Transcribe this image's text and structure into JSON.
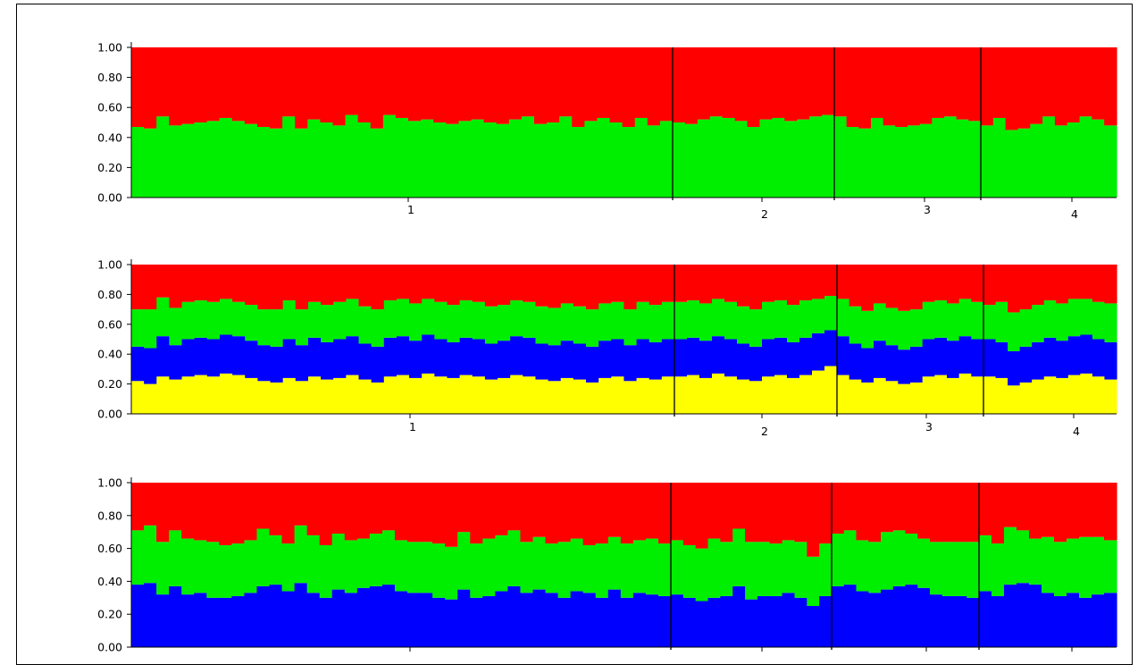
{
  "chart_data": [
    {
      "type": "bar",
      "stacked": true,
      "ylim": [
        0,
        1
      ],
      "yticks": [
        "0.00",
        "0.20",
        "0.40",
        "0.60",
        "0.80",
        "1.00"
      ],
      "populations": [
        {
          "label": "1",
          "count": 43
        },
        {
          "label": "2",
          "count": 13
        },
        {
          "label": "3",
          "count": 12
        },
        {
          "label": "4",
          "count": 11
        }
      ],
      "colors": [
        "#00ee00",
        "#ff0000"
      ],
      "cumulative_boundaries": [
        [
          0.47,
          0.46,
          0.54,
          0.48,
          0.49,
          0.5,
          0.51,
          0.53,
          0.51,
          0.49,
          0.47,
          0.46,
          0.54,
          0.46,
          0.52,
          0.5,
          0.48,
          0.55,
          0.5,
          0.46,
          0.55,
          0.53,
          0.51,
          0.52,
          0.5,
          0.49,
          0.51,
          0.52,
          0.5,
          0.49,
          0.52,
          0.54,
          0.49,
          0.5,
          0.54,
          0.47,
          0.51,
          0.53,
          0.5,
          0.47,
          0.53,
          0.48,
          0.51,
          0.5,
          0.49,
          0.52,
          0.54,
          0.53,
          0.51,
          0.47,
          0.52,
          0.53,
          0.51,
          0.52,
          0.54,
          0.55,
          0.54,
          0.47,
          0.46,
          0.53,
          0.48,
          0.47,
          0.48,
          0.49,
          0.53,
          0.54,
          0.52,
          0.51,
          0.48,
          0.53,
          0.45,
          0.46,
          0.49,
          0.54,
          0.48,
          0.5,
          0.54,
          0.52,
          0.48
        ]
      ]
    },
    {
      "type": "bar",
      "stacked": true,
      "ylim": [
        0,
        1
      ],
      "yticks": [
        "0.00",
        "0.20",
        "0.40",
        "0.60",
        "0.80",
        "1.00"
      ],
      "populations": [
        {
          "label": "1",
          "count": 43
        },
        {
          "label": "2",
          "count": 13
        },
        {
          "label": "3",
          "count": 12
        },
        {
          "label": "4",
          "count": 11
        }
      ],
      "colors": [
        "#ffff00",
        "#0000ff",
        "#00ee00",
        "#ff0000"
      ],
      "cumulative_boundaries": [
        [
          0.22,
          0.2,
          0.25,
          0.23,
          0.25,
          0.26,
          0.25,
          0.27,
          0.26,
          0.24,
          0.22,
          0.21,
          0.24,
          0.22,
          0.25,
          0.23,
          0.24,
          0.26,
          0.23,
          0.21,
          0.25,
          0.26,
          0.24,
          0.27,
          0.25,
          0.24,
          0.26,
          0.25,
          0.23,
          0.24,
          0.26,
          0.25,
          0.23,
          0.22,
          0.24,
          0.23,
          0.21,
          0.24,
          0.25,
          0.22,
          0.24,
          0.23,
          0.25,
          0.25,
          0.26,
          0.24,
          0.27,
          0.25,
          0.23,
          0.22,
          0.25,
          0.26,
          0.24,
          0.26,
          0.29,
          0.32,
          0.26,
          0.23,
          0.21,
          0.24,
          0.22,
          0.2,
          0.21,
          0.25,
          0.26,
          0.24,
          0.27,
          0.25,
          0.25,
          0.24,
          0.19,
          0.21,
          0.23,
          0.25,
          0.24,
          0.26,
          0.27,
          0.25,
          0.23
        ],
        [
          0.45,
          0.44,
          0.52,
          0.46,
          0.5,
          0.51,
          0.5,
          0.53,
          0.52,
          0.49,
          0.46,
          0.45,
          0.5,
          0.46,
          0.51,
          0.48,
          0.5,
          0.52,
          0.47,
          0.45,
          0.51,
          0.52,
          0.49,
          0.53,
          0.5,
          0.48,
          0.51,
          0.5,
          0.47,
          0.49,
          0.52,
          0.51,
          0.47,
          0.46,
          0.49,
          0.47,
          0.45,
          0.49,
          0.5,
          0.46,
          0.5,
          0.48,
          0.5,
          0.5,
          0.51,
          0.49,
          0.52,
          0.5,
          0.47,
          0.45,
          0.5,
          0.51,
          0.48,
          0.51,
          0.54,
          0.56,
          0.52,
          0.47,
          0.44,
          0.49,
          0.46,
          0.43,
          0.45,
          0.5,
          0.51,
          0.49,
          0.52,
          0.5,
          0.5,
          0.48,
          0.42,
          0.45,
          0.48,
          0.51,
          0.49,
          0.52,
          0.53,
          0.5,
          0.48
        ],
        [
          0.7,
          0.7,
          0.78,
          0.71,
          0.75,
          0.76,
          0.75,
          0.77,
          0.75,
          0.73,
          0.7,
          0.7,
          0.76,
          0.7,
          0.75,
          0.73,
          0.75,
          0.77,
          0.72,
          0.7,
          0.76,
          0.77,
          0.74,
          0.77,
          0.75,
          0.73,
          0.76,
          0.75,
          0.72,
          0.73,
          0.76,
          0.75,
          0.72,
          0.71,
          0.74,
          0.72,
          0.7,
          0.74,
          0.75,
          0.7,
          0.75,
          0.73,
          0.75,
          0.75,
          0.76,
          0.74,
          0.77,
          0.75,
          0.72,
          0.7,
          0.75,
          0.76,
          0.73,
          0.76,
          0.77,
          0.79,
          0.77,
          0.72,
          0.69,
          0.74,
          0.71,
          0.69,
          0.7,
          0.75,
          0.76,
          0.74,
          0.77,
          0.75,
          0.73,
          0.75,
          0.68,
          0.7,
          0.73,
          0.76,
          0.74,
          0.77,
          0.77,
          0.75,
          0.74
        ]
      ]
    },
    {
      "type": "bar",
      "stacked": true,
      "ylim": [
        0,
        1
      ],
      "yticks": [
        "0.00",
        "0.20",
        "0.40",
        "0.60",
        "0.80",
        "1.00"
      ],
      "populations": [
        {
          "label": "1",
          "count": 43
        },
        {
          "label": "2",
          "count": 13
        },
        {
          "label": "3",
          "count": 12
        },
        {
          "label": "4",
          "count": 11
        }
      ],
      "colors": [
        "#0000ff",
        "#00ee00",
        "#ff0000"
      ],
      "cumulative_boundaries": [
        [
          0.38,
          0.39,
          0.32,
          0.37,
          0.32,
          0.33,
          0.3,
          0.3,
          0.31,
          0.33,
          0.37,
          0.38,
          0.34,
          0.39,
          0.33,
          0.3,
          0.35,
          0.33,
          0.36,
          0.37,
          0.38,
          0.34,
          0.33,
          0.33,
          0.3,
          0.29,
          0.35,
          0.3,
          0.31,
          0.34,
          0.37,
          0.33,
          0.35,
          0.33,
          0.3,
          0.34,
          0.33,
          0.3,
          0.35,
          0.3,
          0.33,
          0.32,
          0.31,
          0.32,
          0.3,
          0.28,
          0.3,
          0.31,
          0.37,
          0.29,
          0.31,
          0.31,
          0.33,
          0.3,
          0.25,
          0.31,
          0.37,
          0.38,
          0.34,
          0.33,
          0.35,
          0.37,
          0.38,
          0.36,
          0.32,
          0.31,
          0.31,
          0.3,
          0.34,
          0.31,
          0.38,
          0.39,
          0.38,
          0.33,
          0.31,
          0.33,
          0.3,
          0.32,
          0.33
        ],
        [
          0.71,
          0.74,
          0.64,
          0.71,
          0.66,
          0.65,
          0.64,
          0.62,
          0.63,
          0.65,
          0.72,
          0.68,
          0.63,
          0.74,
          0.68,
          0.62,
          0.69,
          0.65,
          0.66,
          0.69,
          0.71,
          0.65,
          0.64,
          0.64,
          0.63,
          0.61,
          0.7,
          0.63,
          0.66,
          0.68,
          0.71,
          0.64,
          0.67,
          0.63,
          0.64,
          0.66,
          0.62,
          0.63,
          0.67,
          0.63,
          0.65,
          0.66,
          0.63,
          0.65,
          0.62,
          0.6,
          0.66,
          0.64,
          0.72,
          0.64,
          0.64,
          0.63,
          0.65,
          0.64,
          0.55,
          0.63,
          0.69,
          0.71,
          0.65,
          0.64,
          0.7,
          0.71,
          0.69,
          0.66,
          0.64,
          0.64,
          0.64,
          0.64,
          0.68,
          0.63,
          0.73,
          0.71,
          0.66,
          0.67,
          0.64,
          0.66,
          0.67,
          0.67,
          0.65
        ]
      ]
    }
  ]
}
